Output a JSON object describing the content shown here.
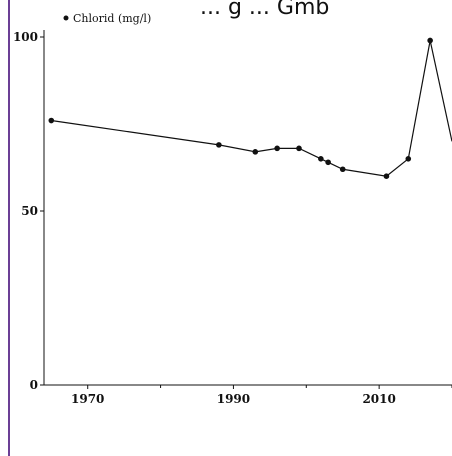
{
  "chart_data": {
    "type": "line",
    "title_fragment": "... g ... Gmb",
    "series": [
      {
        "name": "Chlorid (mg/l)",
        "color": "#111111",
        "x": [
          1965,
          1988,
          1993,
          1996,
          1999,
          2002,
          2003,
          2005,
          2011,
          2014,
          2017,
          2020
        ],
        "y": [
          76,
          69,
          67,
          68,
          68,
          65,
          64,
          62,
          60,
          65,
          99,
          70
        ]
      }
    ],
    "xlim": [
      1964,
      2020
    ],
    "ylim": [
      0,
      100
    ],
    "x_ticks": [
      1970,
      1990,
      2010
    ],
    "x_tick_labels": [
      "1970",
      "1990",
      "2010"
    ],
    "y_ticks": [
      0,
      50,
      100
    ],
    "y_tick_labels": [
      "0",
      "50",
      "100"
    ],
    "legend_position": "top-left",
    "grid": false
  }
}
